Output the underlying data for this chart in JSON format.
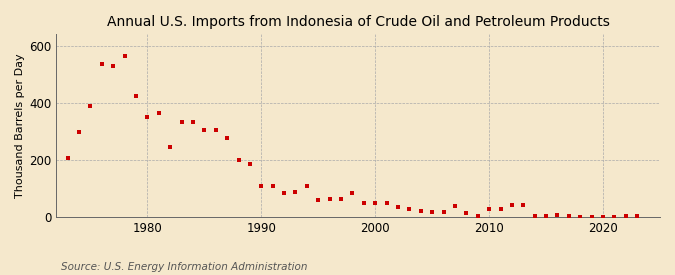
{
  "title": "Annual U.S. Imports from Indonesia of Crude Oil and Petroleum Products",
  "ylabel": "Thousand Barrels per Day",
  "source": "Source: U.S. Energy Information Administration",
  "background_color": "#f5e8cc",
  "plot_background_color": "#f5e8cc",
  "marker_color": "#cc0000",
  "ylim": [
    0,
    640
  ],
  "yticks": [
    0,
    200,
    400,
    600
  ],
  "years": [
    1973,
    1974,
    1975,
    1976,
    1977,
    1978,
    1979,
    1980,
    1981,
    1982,
    1983,
    1984,
    1985,
    1986,
    1987,
    1988,
    1989,
    1990,
    1991,
    1992,
    1993,
    1994,
    1995,
    1996,
    1997,
    1998,
    1999,
    2000,
    2001,
    2002,
    2003,
    2004,
    2005,
    2006,
    2007,
    2008,
    2009,
    2010,
    2011,
    2012,
    2013,
    2014,
    2015,
    2016,
    2017,
    2018,
    2019,
    2020,
    2021,
    2022,
    2023
  ],
  "values": [
    207,
    300,
    390,
    535,
    530,
    565,
    425,
    350,
    365,
    245,
    335,
    335,
    305,
    305,
    278,
    200,
    185,
    110,
    110,
    85,
    90,
    110,
    60,
    65,
    65,
    85,
    50,
    50,
    50,
    35,
    28,
    22,
    20,
    20,
    40,
    15,
    5,
    30,
    28,
    45,
    42,
    5,
    5,
    8,
    4,
    2,
    2,
    2,
    2,
    5,
    4
  ],
  "xtick_positions": [
    1980,
    1990,
    2000,
    2010,
    2020
  ],
  "xlim": [
    1972,
    2025
  ],
  "grid_color": "#aaaaaa",
  "spine_color": "#666666",
  "title_fontsize": 10,
  "ylabel_fontsize": 8,
  "tick_fontsize": 8.5,
  "source_fontsize": 7.5,
  "marker_size": 10
}
